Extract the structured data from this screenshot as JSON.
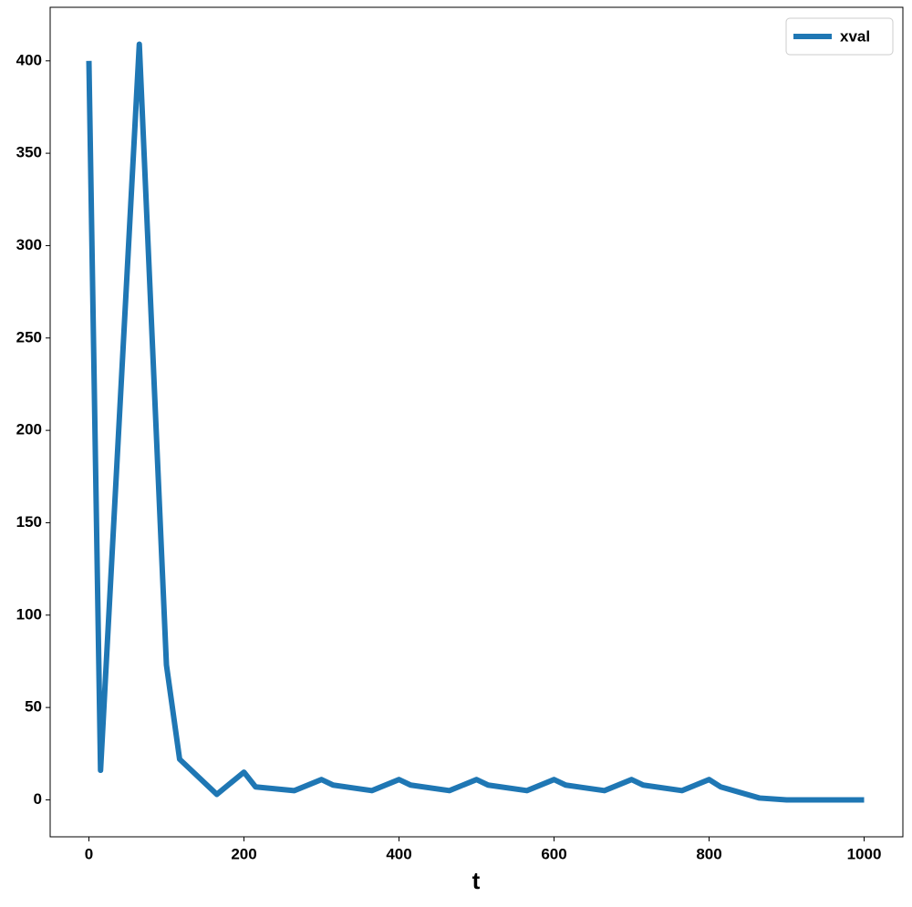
{
  "chart_data": {
    "type": "line",
    "xlabel": "t",
    "x": [
      0,
      15,
      65,
      100,
      117,
      165,
      200,
      215,
      265,
      300,
      315,
      365,
      400,
      415,
      465,
      500,
      515,
      565,
      600,
      615,
      665,
      700,
      715,
      765,
      800,
      815,
      865,
      900,
      1000
    ],
    "series": [
      {
        "name": "xval",
        "color": "#1f77b4",
        "values": [
          400,
          16,
          409,
          73,
          22,
          3,
          15,
          7,
          5,
          11,
          8,
          5,
          11,
          8,
          5,
          11,
          8,
          5,
          11,
          8,
          5,
          11,
          8,
          5,
          11,
          7,
          1,
          0,
          0
        ]
      }
    ],
    "xlim": [
      -50,
      1050
    ],
    "ylim": [
      -20,
      429
    ],
    "xticks": [
      0,
      200,
      400,
      600,
      800,
      1000
    ],
    "yticks": [
      0,
      50,
      100,
      150,
      200,
      250,
      300,
      350,
      400
    ],
    "legend": "upper right"
  }
}
